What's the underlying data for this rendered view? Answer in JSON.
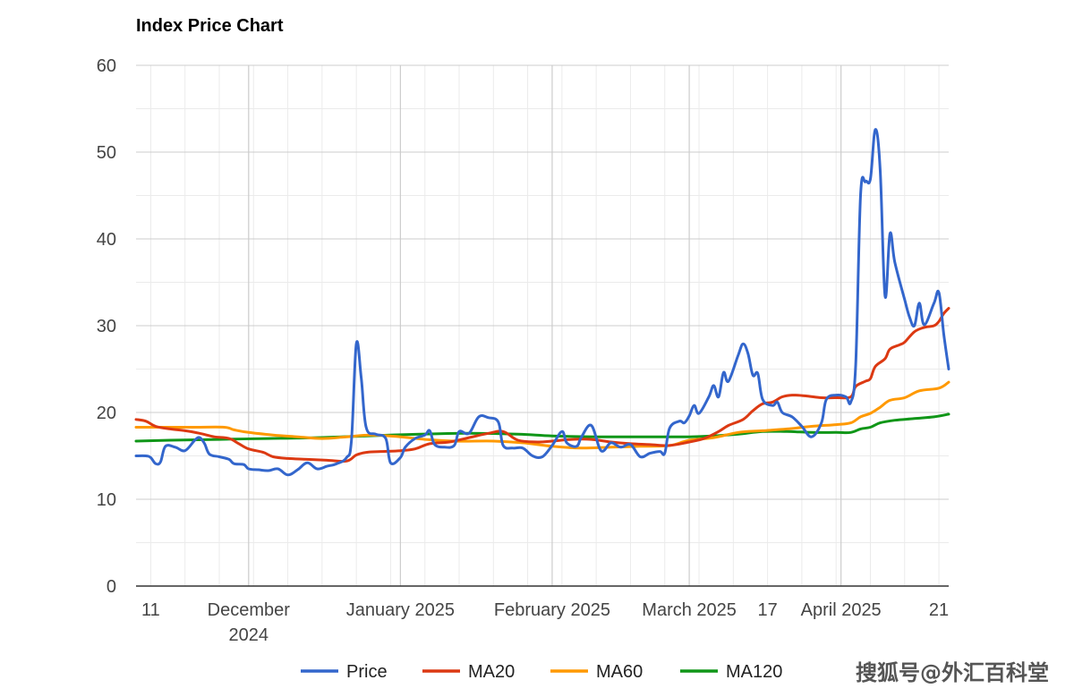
{
  "chart_data": {
    "type": "line",
    "title": "Index Price Chart",
    "ylim": [
      0,
      60
    ],
    "y_ticks": [
      0,
      10,
      20,
      30,
      40,
      50,
      60
    ],
    "x_range": [
      "2024-11-08",
      "2025-04-23"
    ],
    "x_tick_labels": [
      {
        "date": "2024-11-11",
        "lines": [
          "11"
        ]
      },
      {
        "date": "2024-12-01",
        "lines": [
          "December",
          "2024"
        ]
      },
      {
        "date": "2025-01-01",
        "lines": [
          "January 2025"
        ]
      },
      {
        "date": "2025-02-01",
        "lines": [
          "February 2025"
        ]
      },
      {
        "date": "2025-03-01",
        "lines": [
          "March 2025"
        ]
      },
      {
        "date": "2025-03-17",
        "lines": [
          "17"
        ]
      },
      {
        "date": "2025-04-01",
        "lines": [
          "April 2025"
        ]
      },
      {
        "date": "2025-04-21",
        "lines": [
          "21"
        ]
      }
    ],
    "grid": true,
    "legend_position": "bottom",
    "series": [
      {
        "name": "Price",
        "color": "#3366cc",
        "points": [
          [
            "2024-11-08",
            15.0
          ],
          [
            "2024-11-10",
            15.0
          ],
          [
            "2024-11-11",
            14.8
          ],
          [
            "2024-11-12",
            14.1
          ],
          [
            "2024-11-13",
            14.3
          ],
          [
            "2024-11-14",
            16.1
          ],
          [
            "2024-11-16",
            16.0
          ],
          [
            "2024-11-18",
            15.6
          ],
          [
            "2024-11-20",
            16.8
          ],
          [
            "2024-11-21",
            17.1
          ],
          [
            "2024-11-22",
            16.4
          ],
          [
            "2024-11-23",
            15.2
          ],
          [
            "2024-11-25",
            14.9
          ],
          [
            "2024-11-27",
            14.6
          ],
          [
            "2024-11-28",
            14.1
          ],
          [
            "2024-11-30",
            14.0
          ],
          [
            "2024-12-01",
            13.5
          ],
          [
            "2024-12-03",
            13.4
          ],
          [
            "2024-12-05",
            13.3
          ],
          [
            "2024-12-07",
            13.5
          ],
          [
            "2024-12-09",
            12.8
          ],
          [
            "2024-12-11",
            13.4
          ],
          [
            "2024-12-13",
            14.2
          ],
          [
            "2024-12-15",
            13.5
          ],
          [
            "2024-12-17",
            13.8
          ],
          [
            "2024-12-19",
            14.1
          ],
          [
            "2024-12-21",
            14.8
          ],
          [
            "2024-12-22",
            16.8
          ],
          [
            "2024-12-23",
            27.9
          ],
          [
            "2024-12-24",
            24.0
          ],
          [
            "2024-12-25",
            18.3
          ],
          [
            "2024-12-27",
            17.5
          ],
          [
            "2024-12-29",
            17.0
          ],
          [
            "2024-12-30",
            14.2
          ],
          [
            "2025-01-01",
            14.8
          ],
          [
            "2025-01-02",
            16.0
          ],
          [
            "2025-01-04",
            17.0
          ],
          [
            "2025-01-06",
            17.4
          ],
          [
            "2025-01-07",
            17.9
          ],
          [
            "2025-01-08",
            16.3
          ],
          [
            "2025-01-10",
            16.0
          ],
          [
            "2025-01-12",
            16.2
          ],
          [
            "2025-01-13",
            17.8
          ],
          [
            "2025-01-15",
            17.6
          ],
          [
            "2025-01-17",
            19.5
          ],
          [
            "2025-01-19",
            19.4
          ],
          [
            "2025-01-21",
            18.9
          ],
          [
            "2025-01-22",
            16.2
          ],
          [
            "2025-01-24",
            15.9
          ],
          [
            "2025-01-26",
            15.9
          ],
          [
            "2025-01-28",
            15.0
          ],
          [
            "2025-01-30",
            14.9
          ],
          [
            "2025-02-01",
            16.2
          ],
          [
            "2025-02-03",
            17.8
          ],
          [
            "2025-02-04",
            16.5
          ],
          [
            "2025-02-06",
            16.1
          ],
          [
            "2025-02-07",
            17.2
          ],
          [
            "2025-02-09",
            18.5
          ],
          [
            "2025-02-11",
            15.6
          ],
          [
            "2025-02-13",
            16.5
          ],
          [
            "2025-02-15",
            16.0
          ],
          [
            "2025-02-17",
            16.3
          ],
          [
            "2025-02-19",
            14.9
          ],
          [
            "2025-02-21",
            15.3
          ],
          [
            "2025-02-23",
            15.5
          ],
          [
            "2025-02-24",
            15.3
          ],
          [
            "2025-02-25",
            18.2
          ],
          [
            "2025-02-27",
            19.0
          ],
          [
            "2025-02-28",
            18.8
          ],
          [
            "2025-03-01",
            19.6
          ],
          [
            "2025-03-02",
            20.8
          ],
          [
            "2025-03-03",
            19.9
          ],
          [
            "2025-03-05",
            21.8
          ],
          [
            "2025-03-06",
            23.1
          ],
          [
            "2025-03-07",
            21.8
          ],
          [
            "2025-03-08",
            24.6
          ],
          [
            "2025-03-09",
            23.6
          ],
          [
            "2025-03-11",
            26.6
          ],
          [
            "2025-03-12",
            27.9
          ],
          [
            "2025-03-13",
            26.8
          ],
          [
            "2025-03-14",
            24.3
          ],
          [
            "2025-03-15",
            24.5
          ],
          [
            "2025-03-16",
            21.5
          ],
          [
            "2025-03-18",
            20.8
          ],
          [
            "2025-03-19",
            21.2
          ],
          [
            "2025-03-20",
            20.0
          ],
          [
            "2025-03-22",
            19.5
          ],
          [
            "2025-03-24",
            18.4
          ],
          [
            "2025-03-26",
            17.2
          ],
          [
            "2025-03-28",
            18.8
          ],
          [
            "2025-03-29",
            21.5
          ],
          [
            "2025-03-31",
            22.0
          ],
          [
            "2025-04-02",
            21.8
          ],
          [
            "2025-04-03",
            21.2
          ],
          [
            "2025-04-04",
            25.5
          ],
          [
            "2025-04-05",
            45.0
          ],
          [
            "2025-04-06",
            46.6
          ],
          [
            "2025-04-07",
            46.9
          ],
          [
            "2025-04-08",
            52.6
          ],
          [
            "2025-04-09",
            48.0
          ],
          [
            "2025-04-10",
            33.4
          ],
          [
            "2025-04-11",
            40.6
          ],
          [
            "2025-04-12",
            37.3
          ],
          [
            "2025-04-14",
            33.0
          ],
          [
            "2025-04-15",
            31.0
          ],
          [
            "2025-04-16",
            30.0
          ],
          [
            "2025-04-17",
            32.6
          ],
          [
            "2025-04-18",
            30.1
          ],
          [
            "2025-04-20",
            32.6
          ],
          [
            "2025-04-21",
            33.8
          ],
          [
            "2025-04-22",
            29.0
          ],
          [
            "2025-04-23",
            25.0
          ]
        ]
      },
      {
        "name": "MA20",
        "color": "#dc3912",
        "points": [
          [
            "2024-11-08",
            19.2
          ],
          [
            "2024-11-10",
            19.0
          ],
          [
            "2024-11-12",
            18.4
          ],
          [
            "2024-11-15",
            18.1
          ],
          [
            "2024-11-18",
            17.9
          ],
          [
            "2024-11-21",
            17.6
          ],
          [
            "2024-11-24",
            17.2
          ],
          [
            "2024-11-27",
            17.0
          ],
          [
            "2024-11-29",
            16.4
          ],
          [
            "2024-12-01",
            15.8
          ],
          [
            "2024-12-04",
            15.4
          ],
          [
            "2024-12-06",
            14.9
          ],
          [
            "2024-12-09",
            14.7
          ],
          [
            "2024-12-13",
            14.6
          ],
          [
            "2024-12-17",
            14.5
          ],
          [
            "2024-12-21",
            14.4
          ],
          [
            "2024-12-23",
            15.1
          ],
          [
            "2024-12-25",
            15.4
          ],
          [
            "2024-12-28",
            15.5
          ],
          [
            "2025-01-01",
            15.6
          ],
          [
            "2025-01-04",
            15.8
          ],
          [
            "2025-01-07",
            16.4
          ],
          [
            "2025-01-11",
            16.6
          ],
          [
            "2025-01-15",
            17.1
          ],
          [
            "2025-01-19",
            17.6
          ],
          [
            "2025-01-22",
            17.8
          ],
          [
            "2025-01-25",
            16.8
          ],
          [
            "2025-01-29",
            16.6
          ],
          [
            "2025-02-01",
            16.7
          ],
          [
            "2025-02-05",
            16.9
          ],
          [
            "2025-02-09",
            16.9
          ],
          [
            "2025-02-13",
            16.6
          ],
          [
            "2025-02-17",
            16.4
          ],
          [
            "2025-02-21",
            16.3
          ],
          [
            "2025-02-25",
            16.2
          ],
          [
            "2025-03-01",
            16.6
          ],
          [
            "2025-03-04",
            17.0
          ],
          [
            "2025-03-07",
            17.8
          ],
          [
            "2025-03-09",
            18.5
          ],
          [
            "2025-03-12",
            19.2
          ],
          [
            "2025-03-14",
            20.2
          ],
          [
            "2025-03-16",
            21.0
          ],
          [
            "2025-03-18",
            21.2
          ],
          [
            "2025-03-20",
            21.8
          ],
          [
            "2025-03-22",
            22.0
          ],
          [
            "2025-03-25",
            21.9
          ],
          [
            "2025-03-28",
            21.7
          ],
          [
            "2025-03-31",
            21.7
          ],
          [
            "2025-04-03",
            21.8
          ],
          [
            "2025-04-04",
            23.0
          ],
          [
            "2025-04-06",
            23.6
          ],
          [
            "2025-04-07",
            23.9
          ],
          [
            "2025-04-08",
            25.3
          ],
          [
            "2025-04-10",
            26.2
          ],
          [
            "2025-04-11",
            27.3
          ],
          [
            "2025-04-13",
            27.8
          ],
          [
            "2025-04-14",
            28.1
          ],
          [
            "2025-04-16",
            29.3
          ],
          [
            "2025-04-18",
            29.8
          ],
          [
            "2025-04-20",
            30.0
          ],
          [
            "2025-04-21",
            30.5
          ],
          [
            "2025-04-22",
            31.4
          ],
          [
            "2025-04-23",
            32.0
          ]
        ]
      },
      {
        "name": "MA60",
        "color": "#ff9900",
        "points": [
          [
            "2024-11-08",
            18.3
          ],
          [
            "2024-11-12",
            18.3
          ],
          [
            "2024-11-20",
            18.3
          ],
          [
            "2024-11-26",
            18.3
          ],
          [
            "2024-11-28",
            18.0
          ],
          [
            "2024-12-01",
            17.7
          ],
          [
            "2024-12-06",
            17.4
          ],
          [
            "2024-12-11",
            17.2
          ],
          [
            "2024-12-16",
            17.0
          ],
          [
            "2024-12-21",
            17.2
          ],
          [
            "2024-12-26",
            17.4
          ],
          [
            "2025-01-01",
            17.2
          ],
          [
            "2025-01-06",
            16.9
          ],
          [
            "2025-01-12",
            16.7
          ],
          [
            "2025-01-20",
            16.7
          ],
          [
            "2025-01-26",
            16.5
          ],
          [
            "2025-02-01",
            16.1
          ],
          [
            "2025-02-07",
            15.9
          ],
          [
            "2025-02-13",
            16.0
          ],
          [
            "2025-02-19",
            16.1
          ],
          [
            "2025-02-25",
            16.2
          ],
          [
            "2025-03-01",
            16.8
          ],
          [
            "2025-03-06",
            17.1
          ],
          [
            "2025-03-11",
            17.7
          ],
          [
            "2025-03-16",
            17.9
          ],
          [
            "2025-03-21",
            18.1
          ],
          [
            "2025-03-26",
            18.4
          ],
          [
            "2025-03-31",
            18.6
          ],
          [
            "2025-04-03",
            18.8
          ],
          [
            "2025-04-05",
            19.5
          ],
          [
            "2025-04-07",
            19.9
          ],
          [
            "2025-04-09",
            20.6
          ],
          [
            "2025-04-11",
            21.4
          ],
          [
            "2025-04-14",
            21.7
          ],
          [
            "2025-04-17",
            22.5
          ],
          [
            "2025-04-21",
            22.8
          ],
          [
            "2025-04-23",
            23.5
          ]
        ]
      },
      {
        "name": "MA120",
        "color": "#109618",
        "points": [
          [
            "2024-11-08",
            16.7
          ],
          [
            "2024-11-15",
            16.8
          ],
          [
            "2024-11-25",
            16.9
          ],
          [
            "2024-12-05",
            17.0
          ],
          [
            "2024-12-15",
            17.1
          ],
          [
            "2024-12-25",
            17.3
          ],
          [
            "2025-01-05",
            17.5
          ],
          [
            "2025-01-15",
            17.6
          ],
          [
            "2025-01-25",
            17.5
          ],
          [
            "2025-02-01",
            17.3
          ],
          [
            "2025-02-10",
            17.2
          ],
          [
            "2025-02-20",
            17.2
          ],
          [
            "2025-03-01",
            17.2
          ],
          [
            "2025-03-06",
            17.3
          ],
          [
            "2025-03-11",
            17.5
          ],
          [
            "2025-03-16",
            17.8
          ],
          [
            "2025-03-21",
            17.8
          ],
          [
            "2025-03-26",
            17.7
          ],
          [
            "2025-03-31",
            17.7
          ],
          [
            "2025-04-03",
            17.7
          ],
          [
            "2025-04-05",
            18.1
          ],
          [
            "2025-04-07",
            18.3
          ],
          [
            "2025-04-09",
            18.8
          ],
          [
            "2025-04-12",
            19.1
          ],
          [
            "2025-04-16",
            19.3
          ],
          [
            "2025-04-20",
            19.5
          ],
          [
            "2025-04-23",
            19.8
          ]
        ]
      }
    ]
  },
  "watermark": "搜狐号@外汇百科堂"
}
